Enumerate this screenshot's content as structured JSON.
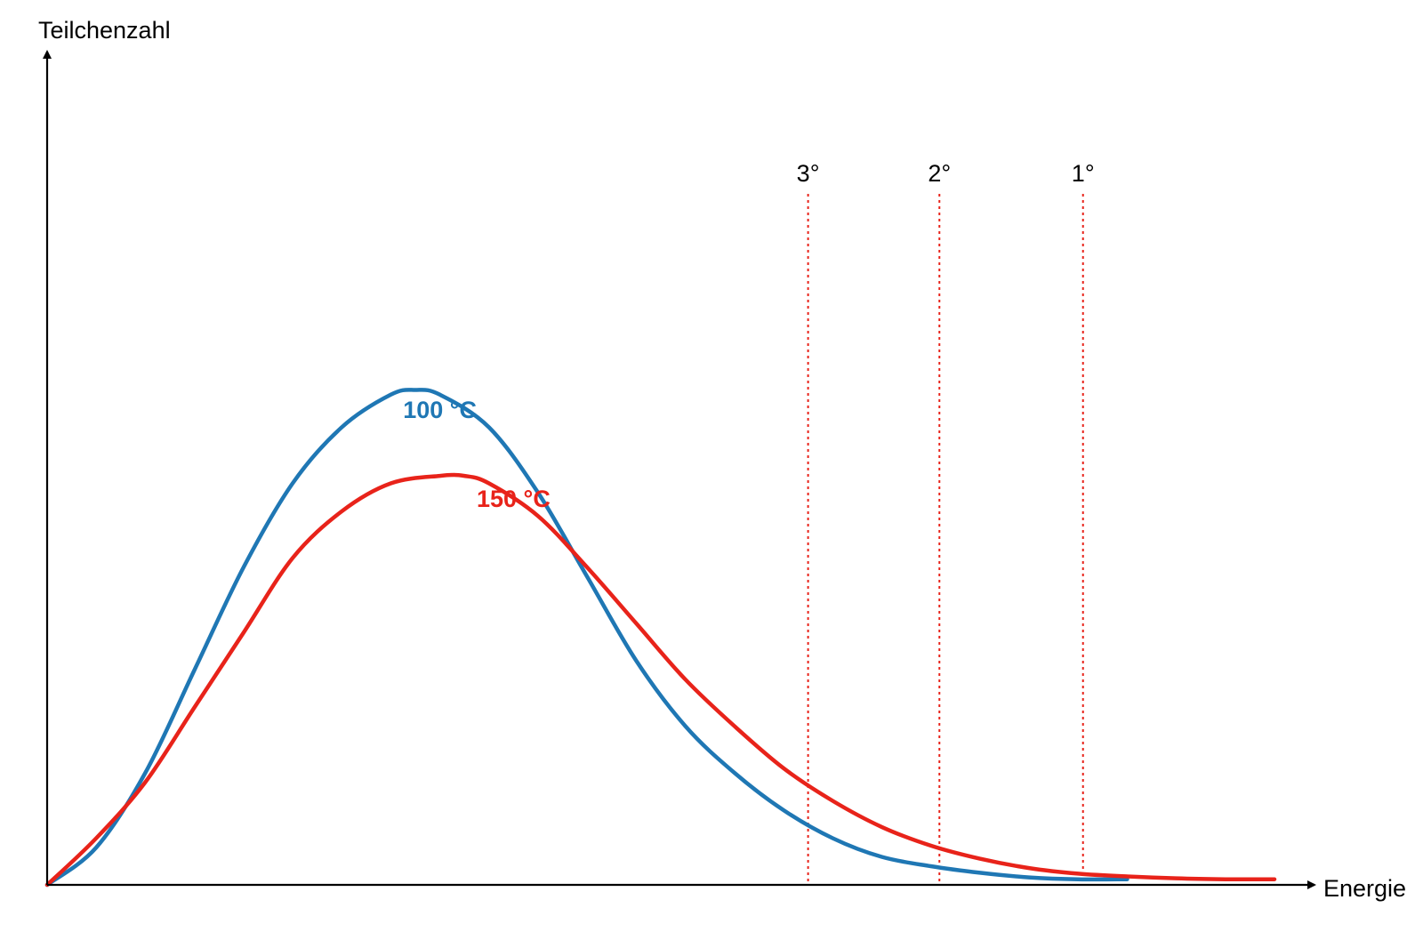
{
  "chart_data": {
    "type": "line",
    "title": "",
    "xlabel": "Energie",
    "ylabel": "Teilchenzahl",
    "xlim": [
      0,
      10
    ],
    "ylim": [
      0,
      6
    ],
    "grid": false,
    "legend": "none",
    "series": [
      {
        "name": "100 °C",
        "color": "#1f77b4",
        "x": [
          0,
          0.4,
          0.8,
          1.2,
          1.6,
          2.0,
          2.4,
          2.8,
          3.0,
          3.2,
          3.6,
          4.0,
          4.4,
          4.8,
          5.2,
          5.6,
          6.0,
          6.4,
          6.8,
          7.2,
          7.6,
          8.0,
          8.4,
          8.8
        ],
        "y": [
          0,
          0.4,
          1.2,
          2.3,
          3.4,
          4.3,
          4.9,
          5.25,
          5.3,
          5.25,
          4.9,
          4.2,
          3.3,
          2.4,
          1.7,
          1.2,
          0.8,
          0.5,
          0.3,
          0.2,
          0.13,
          0.08,
          0.06,
          0.06
        ]
      },
      {
        "name": "150 °C",
        "color": "#e8231a",
        "x": [
          0,
          0.4,
          0.8,
          1.2,
          1.6,
          2.0,
          2.4,
          2.8,
          3.2,
          3.4,
          3.6,
          4.0,
          4.4,
          4.8,
          5.2,
          5.6,
          6.0,
          6.4,
          6.8,
          7.2,
          7.6,
          8.0,
          8.4,
          8.8,
          9.2,
          9.6,
          10.0
        ],
        "y": [
          0,
          0.5,
          1.1,
          1.9,
          2.7,
          3.5,
          4.0,
          4.3,
          4.38,
          4.38,
          4.3,
          3.95,
          3.4,
          2.8,
          2.2,
          1.7,
          1.25,
          0.9,
          0.62,
          0.42,
          0.28,
          0.18,
          0.12,
          0.09,
          0.07,
          0.06,
          0.06
        ]
      }
    ],
    "series_labels": [
      {
        "text": "100 °C",
        "series": 0,
        "x": 2.9,
        "y": 5.0
      },
      {
        "text": "150 °C",
        "series": 1,
        "x": 3.5,
        "y": 4.05
      }
    ],
    "vertical_markers": [
      {
        "label": "3°",
        "x": 6.2,
        "color": "#e8231a"
      },
      {
        "label": "2°",
        "x": 7.27,
        "color": "#e8231a"
      },
      {
        "label": "1°",
        "x": 8.44,
        "color": "#e8231a"
      }
    ],
    "marker_top_y": 7.4
  }
}
